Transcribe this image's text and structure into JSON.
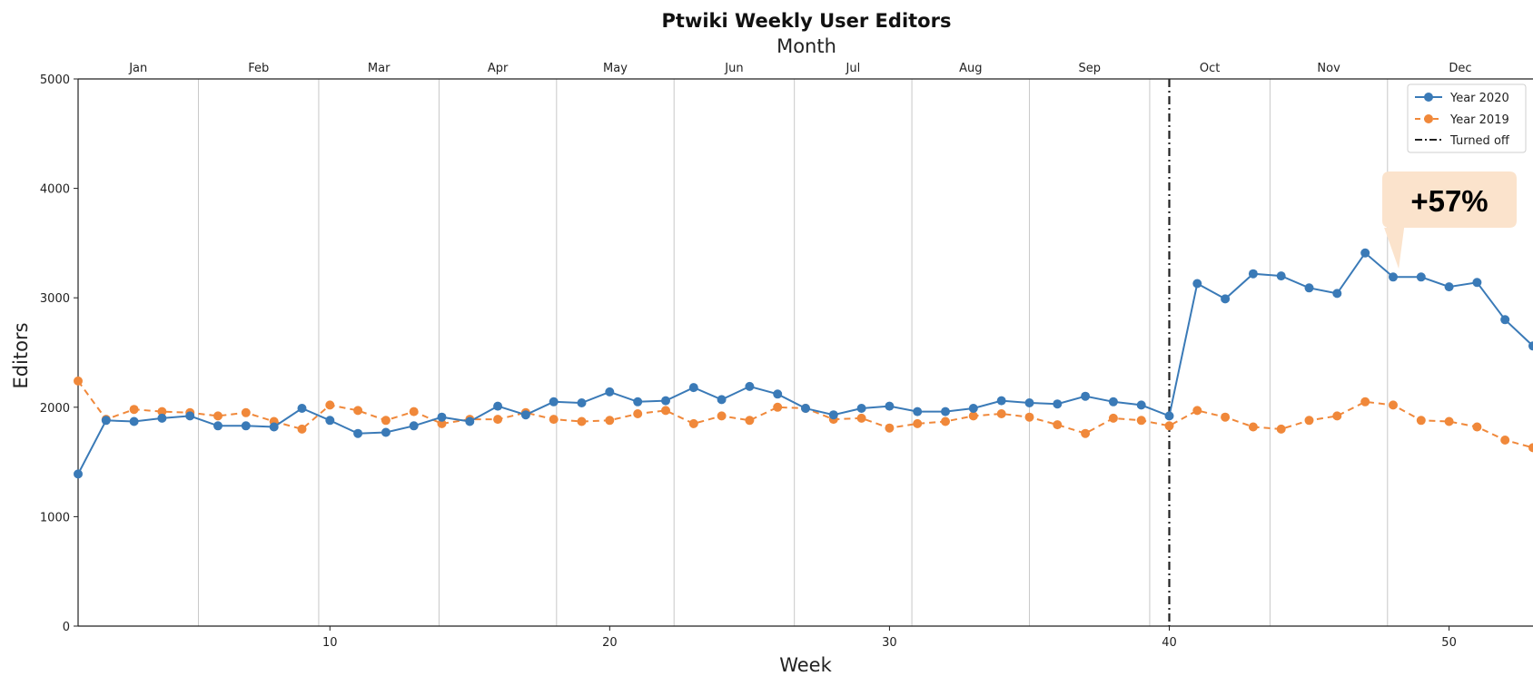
{
  "chart_data": {
    "type": "line",
    "title": "Ptwiki Weekly User Editors",
    "xlabel": "Week",
    "ylabel": "Editors",
    "top_axis_label": "Month",
    "xlim": [
      1,
      53
    ],
    "ylim": [
      0,
      5000
    ],
    "x_ticks": [
      10,
      20,
      30,
      40,
      50
    ],
    "x_tick_labels": [
      "10",
      "20",
      "30",
      "40",
      "50"
    ],
    "y_ticks": [
      0,
      1000,
      2000,
      3000,
      4000,
      5000
    ],
    "y_tick_labels": [
      "0",
      "1000",
      "2000",
      "3000",
      "4000",
      "5000"
    ],
    "months": [
      {
        "label": "Jan",
        "start": 1
      },
      {
        "label": "Feb",
        "start": 5.3
      },
      {
        "label": "Mar",
        "start": 9.6
      },
      {
        "label": "Apr",
        "start": 13.9
      },
      {
        "label": "May",
        "start": 18.1
      },
      {
        "label": "Jun",
        "start": 22.3
      },
      {
        "label": "Jul",
        "start": 26.6
      },
      {
        "label": "Aug",
        "start": 30.8
      },
      {
        "label": "Sep",
        "start": 35.0
      },
      {
        "label": "Oct",
        "start": 39.3
      },
      {
        "label": "Nov",
        "start": 43.6
      },
      {
        "label": "Dec",
        "start": 47.8
      }
    ],
    "grid": "vertical month boundaries",
    "legend_position": "top-right",
    "x": [
      1,
      2,
      3,
      4,
      5,
      6,
      7,
      8,
      9,
      10,
      11,
      12,
      13,
      14,
      15,
      16,
      17,
      18,
      19,
      20,
      21,
      22,
      23,
      24,
      25,
      26,
      27,
      28,
      29,
      30,
      31,
      32,
      33,
      34,
      35,
      36,
      37,
      38,
      39,
      40,
      41,
      42,
      43,
      44,
      45,
      46,
      47,
      48,
      49,
      50,
      51,
      52,
      53
    ],
    "series": [
      {
        "name": "Year 2020",
        "color": "#3a7ab7",
        "style": "solid",
        "values": [
          1390,
          1880,
          1870,
          1900,
          1920,
          1830,
          1830,
          1820,
          1990,
          1880,
          1760,
          1770,
          1830,
          1910,
          1870,
          2010,
          1930,
          2050,
          2040,
          2140,
          2050,
          2060,
          2180,
          2070,
          2190,
          2120,
          1990,
          1930,
          1990,
          2010,
          1960,
          1960,
          1990,
          2060,
          2040,
          2030,
          2100,
          2050,
          2020,
          1920,
          3130,
          2990,
          3220,
          3200,
          3090,
          3040,
          3410,
          3190,
          3190,
          3100,
          3140,
          2800,
          2560
        ]
      },
      {
        "name": "Year 2019",
        "color": "#f0883a",
        "style": "dashed",
        "values": [
          2240,
          1890,
          1980,
          1960,
          1950,
          1920,
          1950,
          1870,
          1800,
          2020,
          1970,
          1880,
          1960,
          1850,
          1890,
          1890,
          1950,
          1890,
          1870,
          1880,
          1940,
          1970,
          1850,
          1920,
          1880,
          2000,
          1990,
          1890,
          1900,
          1810,
          1850,
          1870,
          1920,
          1940,
          1910,
          1840,
          1760,
          1900,
          1880,
          1830,
          1970,
          1910,
          1820,
          1800,
          1880,
          1920,
          2050,
          2020,
          1880,
          1870,
          1820,
          1700,
          1630
        ]
      }
    ],
    "turned_off": {
      "name": "Turned off",
      "x": 40,
      "color": "#222222"
    },
    "annotation": {
      "text": "+57%",
      "x": 48.2,
      "y": 3200
    }
  }
}
